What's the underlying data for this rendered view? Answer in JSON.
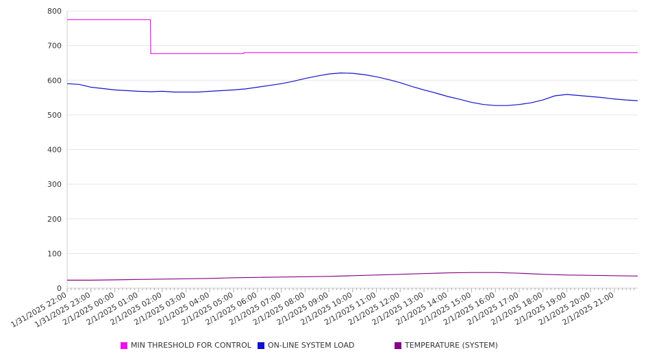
{
  "chart_data": {
    "type": "line",
    "title": "",
    "xlabel": "",
    "ylabel": "",
    "ylim": [
      0,
      800
    ],
    "yticks": [
      0,
      100,
      200,
      300,
      400,
      500,
      600,
      700,
      800
    ],
    "xlim": [
      "1/31/2025 22:00",
      "2/1/2025 21:59"
    ],
    "x_tick_labels": [
      "1/31/2025 22:00",
      "1/31/2025 23:00",
      "2/1/2025 00:00",
      "2/1/2025 01:00",
      "2/1/2025 02:00",
      "2/1/2025 03:00",
      "2/1/2025 04:00",
      "2/1/2025 05:00",
      "2/1/2025 06:00",
      "2/1/2025 07:00",
      "2/1/2025 08:00",
      "2/1/2025 09:00",
      "2/1/2025 10:00",
      "2/1/2025 11:00",
      "2/1/2025 12:00",
      "2/1/2025 13:00",
      "2/1/2025 14:00",
      "2/1/2025 15:00",
      "2/1/2025 16:00",
      "2/1/2025 17:00",
      "2/1/2025 18:00",
      "2/1/2025 19:00",
      "2/1/2025 20:00",
      "2/1/2025 21:00"
    ],
    "grid": true,
    "legend_position": "bottom",
    "series": [
      {
        "name": "MIN THRESHOLD FOR CONTROL",
        "color": "#ee11ee",
        "points": [
          [
            "1/31/2025 22:00",
            775
          ],
          [
            "2/1/2025 01:30",
            775
          ],
          [
            "2/1/2025 01:31",
            677
          ],
          [
            "2/1/2025 05:25",
            677
          ],
          [
            "2/1/2025 05:26",
            680
          ],
          [
            "2/1/2025 21:59",
            680
          ]
        ]
      },
      {
        "name": "ON-LINE SYSTEM LOAD",
        "color": "#1111cc",
        "points": [
          [
            "1/31/2025 22:00",
            590
          ],
          [
            "1/31/2025 22:30",
            588
          ],
          [
            "1/31/2025 23:00",
            580
          ],
          [
            "1/31/2025 23:30",
            576
          ],
          [
            "2/1/2025 00:00",
            572
          ],
          [
            "2/1/2025 00:30",
            570
          ],
          [
            "2/1/2025 01:00",
            568
          ],
          [
            "2/1/2025 01:30",
            567
          ],
          [
            "2/1/2025 02:00",
            568
          ],
          [
            "2/1/2025 02:30",
            566
          ],
          [
            "2/1/2025 03:00",
            566
          ],
          [
            "2/1/2025 03:30",
            566
          ],
          [
            "2/1/2025 04:00",
            568
          ],
          [
            "2/1/2025 04:30",
            570
          ],
          [
            "2/1/2025 05:00",
            572
          ],
          [
            "2/1/2025 05:30",
            575
          ],
          [
            "2/1/2025 06:00",
            580
          ],
          [
            "2/1/2025 06:30",
            585
          ],
          [
            "2/1/2025 07:00",
            590
          ],
          [
            "2/1/2025 07:30",
            597
          ],
          [
            "2/1/2025 08:00",
            605
          ],
          [
            "2/1/2025 08:30",
            612
          ],
          [
            "2/1/2025 09:00",
            618
          ],
          [
            "2/1/2025 09:30",
            621
          ],
          [
            "2/1/2025 10:00",
            620
          ],
          [
            "2/1/2025 10:30",
            616
          ],
          [
            "2/1/2025 11:00",
            610
          ],
          [
            "2/1/2025 11:30",
            602
          ],
          [
            "2/1/2025 12:00",
            593
          ],
          [
            "2/1/2025 12:30",
            582
          ],
          [
            "2/1/2025 13:00",
            572
          ],
          [
            "2/1/2025 13:30",
            563
          ],
          [
            "2/1/2025 14:00",
            553
          ],
          [
            "2/1/2025 14:30",
            545
          ],
          [
            "2/1/2025 15:00",
            536
          ],
          [
            "2/1/2025 15:30",
            530
          ],
          [
            "2/1/2025 16:00",
            527
          ],
          [
            "2/1/2025 16:30",
            527
          ],
          [
            "2/1/2025 17:00",
            530
          ],
          [
            "2/1/2025 17:30",
            535
          ],
          [
            "2/1/2025 18:00",
            543
          ],
          [
            "2/1/2025 18:30",
            555
          ],
          [
            "2/1/2025 19:00",
            559
          ],
          [
            "2/1/2025 19:30",
            556
          ],
          [
            "2/1/2025 20:00",
            553
          ],
          [
            "2/1/2025 20:30",
            550
          ],
          [
            "2/1/2025 21:00",
            546
          ],
          [
            "2/1/2025 21:30",
            543
          ],
          [
            "2/1/2025 21:59",
            541
          ]
        ]
      },
      {
        "name": "TEMPERATURE (SYSTEM)",
        "color": "#880088",
        "points": [
          [
            "1/31/2025 22:00",
            23
          ],
          [
            "1/31/2025 23:00",
            23
          ],
          [
            "2/1/2025 00:00",
            24
          ],
          [
            "2/1/2025 01:00",
            25
          ],
          [
            "2/1/2025 02:00",
            26
          ],
          [
            "2/1/2025 03:00",
            27
          ],
          [
            "2/1/2025 04:00",
            28
          ],
          [
            "2/1/2025 05:00",
            30
          ],
          [
            "2/1/2025 06:00",
            31
          ],
          [
            "2/1/2025 07:00",
            32
          ],
          [
            "2/1/2025 08:00",
            33
          ],
          [
            "2/1/2025 09:00",
            34
          ],
          [
            "2/1/2025 10:00",
            36
          ],
          [
            "2/1/2025 11:00",
            38
          ],
          [
            "2/1/2025 12:00",
            40
          ],
          [
            "2/1/2025 13:00",
            42
          ],
          [
            "2/1/2025 14:00",
            44
          ],
          [
            "2/1/2025 15:00",
            45
          ],
          [
            "2/1/2025 16:00",
            45
          ],
          [
            "2/1/2025 17:00",
            43
          ],
          [
            "2/1/2025 18:00",
            40
          ],
          [
            "2/1/2025 19:00",
            38
          ],
          [
            "2/1/2025 20:00",
            37
          ],
          [
            "2/1/2025 21:00",
            36
          ],
          [
            "2/1/2025 21:59",
            35
          ]
        ]
      }
    ]
  }
}
